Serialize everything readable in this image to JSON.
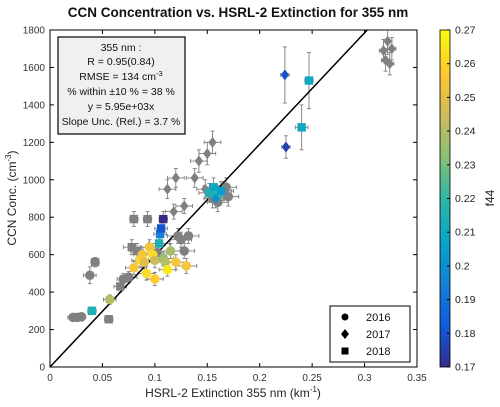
{
  "chart_data": {
    "type": "scatter",
    "title": "CCN Concentration vs. HSRL-2 Extinction for 355 nm",
    "xlabel": "HSRL-2 Extinction 355 nm (km",
    "xlabel_sup": "-1",
    "xlabel_end": ")",
    "ylabel": "CCN Conc. (cm",
    "ylabel_sup": "-3",
    "ylabel_end": ")",
    "xlim": [
      0,
      0.35
    ],
    "ylim": [
      0,
      1800
    ],
    "xticks": [
      0,
      0.05,
      0.1,
      0.15,
      0.2,
      0.25,
      0.3,
      0.35
    ],
    "xtick_labels": [
      "0",
      "0.05",
      "0.1",
      "0.15",
      "0.2",
      "0.25",
      "0.3",
      "0.35"
    ],
    "yticks": [
      0,
      200,
      400,
      600,
      800,
      1000,
      1200,
      1400,
      1600,
      1800
    ],
    "ytick_labels": [
      "0",
      "200",
      "400",
      "600",
      "800",
      "1000",
      "1200",
      "1400",
      "1600",
      "1800"
    ],
    "fit_line": {
      "slope": 5950,
      "intercept": 0,
      "color": "#000000"
    },
    "stats": [
      "355 nm :",
      "R = 0.95(0.84)",
      "RMSE = 134 cm",
      "% within ±10 % = 38 %",
      "y = 5.95e+03x",
      "Slope Unc. (Rel.) = 3.7 %"
    ],
    "stats_sup": "-3",
    "legend": {
      "placement": "bottom-right",
      "entries": [
        {
          "label": "2016",
          "marker": "circle"
        },
        {
          "label": "2017",
          "marker": "diamond"
        },
        {
          "label": "2018",
          "marker": "square"
        }
      ]
    },
    "colorbar": {
      "label": "f44",
      "min": 0.17,
      "max": 0.27,
      "ticks": [
        0.17,
        0.18,
        0.19,
        0.2,
        0.21,
        0.22,
        0.23,
        0.24,
        0.25,
        0.26,
        0.27
      ],
      "tick_labels": [
        "0.17",
        "0.18",
        "0.19",
        "0.2",
        "0.21",
        "0.22",
        "0.23",
        "0.24",
        "0.25",
        "0.26",
        "0.27"
      ]
    },
    "points": [
      {
        "x": 0.022,
        "y": 265,
        "xerr": 0.005,
        "yerr": 15,
        "m": "circle",
        "f44": null
      },
      {
        "x": 0.026,
        "y": 265,
        "xerr": 0.004,
        "yerr": 15,
        "m": "circle",
        "f44": null
      },
      {
        "x": 0.03,
        "y": 268,
        "xerr": 0.004,
        "yerr": 15,
        "m": "circle",
        "f44": null
      },
      {
        "x": 0.038,
        "y": 490,
        "xerr": 0.006,
        "yerr": 45,
        "m": "circle",
        "f44": null
      },
      {
        "x": 0.056,
        "y": 255,
        "xerr": 0.004,
        "yerr": 20,
        "m": "square",
        "f44": null
      },
      {
        "x": 0.04,
        "y": 300,
        "xerr": 0.004,
        "yerr": 20,
        "m": "square",
        "f44": 0.215
      },
      {
        "x": 0.057,
        "y": 360,
        "xerr": 0.006,
        "yerr": 25,
        "m": "circle",
        "f44": 0.24
      },
      {
        "x": 0.043,
        "y": 560,
        "xerr": 0.004,
        "yerr": 25,
        "m": "square",
        "f44": null
      },
      {
        "x": 0.067,
        "y": 430,
        "xerr": 0.006,
        "yerr": 30,
        "m": "square",
        "f44": null
      },
      {
        "x": 0.07,
        "y": 470,
        "xerr": 0.006,
        "yerr": 30,
        "m": "circle",
        "f44": null
      },
      {
        "x": 0.075,
        "y": 480,
        "xerr": 0.008,
        "yerr": 30,
        "m": "circle",
        "f44": null
      },
      {
        "x": 0.078,
        "y": 640,
        "xerr": 0.008,
        "yerr": 40,
        "m": "square",
        "f44": null
      },
      {
        "x": 0.08,
        "y": 790,
        "xerr": 0.004,
        "yerr": 40,
        "m": "square",
        "f44": null
      },
      {
        "x": 0.083,
        "y": 620,
        "xerr": 0.006,
        "yerr": 40,
        "m": "square",
        "f44": null
      },
      {
        "x": 0.08,
        "y": 530,
        "xerr": 0.008,
        "yerr": 35,
        "m": "circle",
        "f44": 0.255
      },
      {
        "x": 0.086,
        "y": 570,
        "xerr": 0.008,
        "yerr": 35,
        "m": "circle",
        "f44": 0.26
      },
      {
        "x": 0.088,
        "y": 600,
        "xerr": 0.008,
        "yerr": 40,
        "m": "circle",
        "f44": 0.255
      },
      {
        "x": 0.09,
        "y": 560,
        "xerr": 0.008,
        "yerr": 35,
        "m": "circle",
        "f44": 0.25
      },
      {
        "x": 0.092,
        "y": 500,
        "xerr": 0.008,
        "yerr": 35,
        "m": "circle",
        "f44": 0.262
      },
      {
        "x": 0.093,
        "y": 790,
        "xerr": 0.004,
        "yerr": 40,
        "m": "square",
        "f44": null
      },
      {
        "x": 0.095,
        "y": 640,
        "xerr": 0.008,
        "yerr": 40,
        "m": "circle",
        "f44": 0.255
      },
      {
        "x": 0.098,
        "y": 600,
        "xerr": 0.008,
        "yerr": 40,
        "m": "circle",
        "f44": 0.262
      },
      {
        "x": 0.1,
        "y": 570,
        "xerr": 0.008,
        "yerr": 40,
        "m": "circle",
        "f44": 0.245
      },
      {
        "x": 0.1,
        "y": 470,
        "xerr": 0.008,
        "yerr": 35,
        "m": "circle",
        "f44": 0.258
      },
      {
        "x": 0.102,
        "y": 610,
        "xerr": 0.012,
        "yerr": 40,
        "m": "circle",
        "f44": null
      },
      {
        "x": 0.104,
        "y": 660,
        "xerr": 0.01,
        "yerr": 40,
        "m": "square",
        "f44": 0.215
      },
      {
        "x": 0.105,
        "y": 710,
        "xerr": 0.006,
        "yerr": 40,
        "m": "square",
        "f44": 0.195
      },
      {
        "x": 0.106,
        "y": 740,
        "xerr": 0.006,
        "yerr": 40,
        "m": "square",
        "f44": 0.18
      },
      {
        "x": 0.108,
        "y": 790,
        "xerr": 0.004,
        "yerr": 40,
        "m": "square",
        "f44": 0.17
      },
      {
        "x": 0.108,
        "y": 580,
        "xerr": 0.01,
        "yerr": 40,
        "m": "circle",
        "f44": 0.235
      },
      {
        "x": 0.11,
        "y": 560,
        "xerr": 0.01,
        "yerr": 40,
        "m": "circle",
        "f44": 0.24
      },
      {
        "x": 0.112,
        "y": 520,
        "xerr": 0.008,
        "yerr": 35,
        "m": "circle",
        "f44": 0.265
      },
      {
        "x": 0.115,
        "y": 620,
        "xerr": 0.01,
        "yerr": 40,
        "m": "circle",
        "f44": 0.238
      },
      {
        "x": 0.12,
        "y": 560,
        "xerr": 0.01,
        "yerr": 40,
        "m": "circle",
        "f44": 0.255
      },
      {
        "x": 0.122,
        "y": 700,
        "xerr": 0.01,
        "yerr": 40,
        "m": "circle",
        "f44": null
      },
      {
        "x": 0.125,
        "y": 680,
        "xerr": 0.01,
        "yerr": 40,
        "m": "circle",
        "f44": null
      },
      {
        "x": 0.128,
        "y": 620,
        "xerr": 0.01,
        "yerr": 40,
        "m": "circle",
        "f44": null
      },
      {
        "x": 0.13,
        "y": 540,
        "xerr": 0.01,
        "yerr": 40,
        "m": "circle",
        "f44": 0.255
      },
      {
        "x": 0.132,
        "y": 700,
        "xerr": 0.01,
        "yerr": 40,
        "m": "circle",
        "f44": null
      },
      {
        "x": 0.118,
        "y": 830,
        "xerr": 0.008,
        "yerr": 40,
        "m": "diamond",
        "f44": null
      },
      {
        "x": 0.112,
        "y": 950,
        "xerr": 0.008,
        "yerr": 50,
        "m": "diamond",
        "f44": null
      },
      {
        "x": 0.12,
        "y": 1010,
        "xerr": 0.008,
        "yerr": 50,
        "m": "diamond",
        "f44": null
      },
      {
        "x": 0.138,
        "y": 1010,
        "xerr": 0.008,
        "yerr": 50,
        "m": "diamond",
        "f44": null
      },
      {
        "x": 0.128,
        "y": 860,
        "xerr": 0.008,
        "yerr": 40,
        "m": "diamond",
        "f44": null
      },
      {
        "x": 0.142,
        "y": 1100,
        "xerr": 0.008,
        "yerr": 60,
        "m": "diamond",
        "f44": null
      },
      {
        "x": 0.15,
        "y": 1140,
        "xerr": 0.008,
        "yerr": 60,
        "m": "diamond",
        "f44": null
      },
      {
        "x": 0.155,
        "y": 1200,
        "xerr": 0.008,
        "yerr": 60,
        "m": "diamond",
        "f44": null
      },
      {
        "x": 0.148,
        "y": 950,
        "xerr": 0.008,
        "yerr": 50,
        "m": "diamond",
        "f44": null
      },
      {
        "x": 0.155,
        "y": 900,
        "xerr": 0.008,
        "yerr": 50,
        "m": "circle",
        "f44": null
      },
      {
        "x": 0.16,
        "y": 880,
        "xerr": 0.01,
        "yerr": 50,
        "m": "circle",
        "f44": null
      },
      {
        "x": 0.165,
        "y": 940,
        "xerr": 0.01,
        "yerr": 50,
        "m": "circle",
        "f44": null
      },
      {
        "x": 0.17,
        "y": 910,
        "xerr": 0.01,
        "yerr": 50,
        "m": "circle",
        "f44": null
      },
      {
        "x": 0.168,
        "y": 960,
        "xerr": 0.01,
        "yerr": 50,
        "m": "circle",
        "f44": null
      },
      {
        "x": 0.152,
        "y": 930,
        "xerr": 0.01,
        "yerr": 50,
        "m": "square",
        "f44": 0.215
      },
      {
        "x": 0.156,
        "y": 960,
        "xerr": 0.01,
        "yerr": 50,
        "m": "square",
        "f44": 0.21
      },
      {
        "x": 0.16,
        "y": 920,
        "xerr": 0.01,
        "yerr": 50,
        "m": "square",
        "f44": 0.22
      },
      {
        "x": 0.163,
        "y": 940,
        "xerr": 0.01,
        "yerr": 50,
        "m": "square",
        "f44": 0.205
      },
      {
        "x": 0.158,
        "y": 900,
        "xerr": 0.008,
        "yerr": 50,
        "m": "diamond",
        "f44": 0.2
      },
      {
        "x": 0.224,
        "y": 1560,
        "xerr": 0.004,
        "yerr": 150,
        "m": "diamond",
        "f44": 0.18
      },
      {
        "x": 0.225,
        "y": 1175,
        "xerr": 0.004,
        "yerr": 60,
        "m": "diamond",
        "f44": 0.175
      },
      {
        "x": 0.24,
        "y": 1280,
        "xerr": 0.006,
        "yerr": 120,
        "m": "square",
        "f44": 0.21
      },
      {
        "x": 0.247,
        "y": 1530,
        "xerr": 0.004,
        "yerr": 150,
        "m": "square",
        "f44": 0.21
      },
      {
        "x": 0.318,
        "y": 1690,
        "xerr": 0.004,
        "yerr": 60,
        "m": "diamond",
        "f44": null
      },
      {
        "x": 0.32,
        "y": 1640,
        "xerr": 0.004,
        "yerr": 60,
        "m": "diamond",
        "f44": null
      },
      {
        "x": 0.322,
        "y": 1740,
        "xerr": 0.004,
        "yerr": 70,
        "m": "diamond",
        "f44": null
      },
      {
        "x": 0.324,
        "y": 1620,
        "xerr": 0.004,
        "yerr": 60,
        "m": "diamond",
        "f44": null
      },
      {
        "x": 0.326,
        "y": 1700,
        "xerr": 0.004,
        "yerr": 60,
        "m": "diamond",
        "f44": null
      }
    ],
    "missing_color": "#808080"
  }
}
